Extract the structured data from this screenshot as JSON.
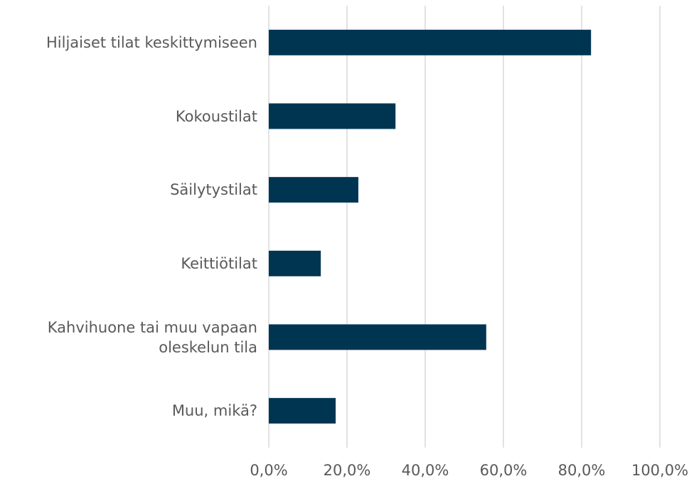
{
  "chart_data": {
    "type": "bar",
    "orientation": "horizontal",
    "categories": [
      "Hiljaiset tilat keskittymiseen",
      "Kokoustilat",
      "Säilytystilat",
      "Keittiötilat",
      "Kahvihuone tai muu vapaan oleskelun tila",
      "Muu, mikä?"
    ],
    "values": [
      82.4,
      32.4,
      22.9,
      13.3,
      55.6,
      17.1
    ],
    "color": "#003552",
    "xlim": [
      0,
      100
    ],
    "xticks": [
      {
        "value": 0,
        "label": "0,0%"
      },
      {
        "value": 20,
        "label": "20,0%"
      },
      {
        "value": 40,
        "label": "40,0%"
      },
      {
        "value": 60,
        "label": "60,0%"
      },
      {
        "value": 80,
        "label": "80,0%"
      },
      {
        "value": 100,
        "label": "100,0%"
      }
    ],
    "grid": true
  }
}
